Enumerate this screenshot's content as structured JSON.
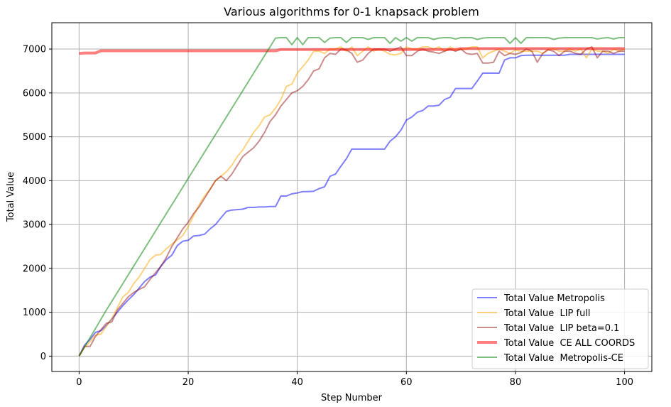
{
  "chart_data": {
    "type": "line",
    "title": "Various algorithms for 0-1 knapsack problem",
    "xlabel": "Step Number",
    "ylabel": "Total  Value",
    "xlim": [
      -5,
      105
    ],
    "ylim": [
      -350,
      7600
    ],
    "xticks": [
      0,
      20,
      40,
      60,
      80,
      100
    ],
    "yticks": [
      0,
      1000,
      2000,
      3000,
      4000,
      5000,
      6000,
      7000
    ],
    "grid": true,
    "legend_position": "bottom-right",
    "series": [
      {
        "name": "Total Value Metropolis",
        "color": "#0000ff",
        "opacity": 0.5,
        "width": 2,
        "x": [
          0,
          1,
          2,
          3,
          4,
          5,
          6,
          7,
          8,
          9,
          10,
          11,
          12,
          13,
          14,
          15,
          16,
          17,
          18,
          19,
          20,
          21,
          22,
          23,
          24,
          25,
          26,
          27,
          28,
          29,
          30,
          31,
          32,
          33,
          34,
          35,
          36,
          37,
          38,
          39,
          40,
          41,
          42,
          43,
          44,
          45,
          46,
          47,
          48,
          49,
          50,
          51,
          52,
          53,
          54,
          55,
          56,
          57,
          58,
          59,
          60,
          61,
          62,
          63,
          64,
          65,
          66,
          67,
          68,
          69,
          70,
          71,
          72,
          73,
          74,
          75,
          76,
          77,
          78,
          79,
          80,
          81,
          82,
          83,
          84,
          85,
          86,
          87,
          88,
          89,
          90,
          91,
          92,
          93,
          94,
          95,
          96,
          97,
          98,
          99,
          100
        ],
        "y": [
          0,
          250,
          380,
          540,
          580,
          700,
          850,
          1000,
          1150,
          1280,
          1400,
          1550,
          1700,
          1800,
          1850,
          2050,
          2200,
          2300,
          2520,
          2620,
          2640,
          2740,
          2750,
          2780,
          2900,
          3000,
          3150,
          3300,
          3330,
          3340,
          3350,
          3390,
          3390,
          3400,
          3400,
          3410,
          3410,
          3650,
          3650,
          3700,
          3720,
          3750,
          3750,
          3760,
          3820,
          3860,
          4100,
          4150,
          4330,
          4500,
          4720,
          4720,
          4720,
          4720,
          4720,
          4720,
          4720,
          4900,
          5000,
          5150,
          5380,
          5450,
          5560,
          5600,
          5700,
          5700,
          5720,
          5850,
          5900,
          6100,
          6100,
          6100,
          6100,
          6270,
          6450,
          6450,
          6450,
          6450,
          6750,
          6800,
          6800,
          6850,
          6860,
          6860,
          6860,
          6860,
          6860,
          6860,
          6860,
          6860,
          6880,
          6880,
          6880,
          6880,
          6880,
          6880,
          6880,
          6880,
          6880,
          6880,
          6880
        ]
      },
      {
        "name": "Total Value  LIP full",
        "color": "#ffa500",
        "opacity": 0.5,
        "width": 2,
        "x": [
          0,
          1,
          2,
          3,
          4,
          5,
          6,
          7,
          8,
          9,
          10,
          11,
          12,
          13,
          14,
          15,
          16,
          17,
          18,
          19,
          20,
          21,
          22,
          23,
          24,
          25,
          26,
          27,
          28,
          29,
          30,
          31,
          32,
          33,
          34,
          35,
          36,
          37,
          38,
          39,
          40,
          41,
          42,
          43,
          44,
          45,
          46,
          47,
          48,
          49,
          50,
          51,
          52,
          53,
          54,
          55,
          56,
          57,
          58,
          59,
          60,
          61,
          62,
          63,
          64,
          65,
          66,
          67,
          68,
          69,
          70,
          71,
          72,
          73,
          74,
          75,
          76,
          77,
          78,
          79,
          80,
          81,
          82,
          83,
          84,
          85,
          86,
          87,
          88,
          89,
          90,
          91,
          92,
          93,
          94,
          95,
          96,
          97,
          98,
          99,
          100
        ],
        "y": [
          0,
          200,
          330,
          480,
          500,
          680,
          860,
          1100,
          1350,
          1450,
          1650,
          1800,
          2000,
          2200,
          2300,
          2320,
          2450,
          2550,
          2650,
          2750,
          2950,
          3200,
          3450,
          3650,
          3800,
          4000,
          4100,
          4200,
          4350,
          4550,
          4700,
          4900,
          5100,
          5250,
          5450,
          5500,
          5650,
          5850,
          6150,
          6200,
          6450,
          6600,
          6750,
          6950,
          6950,
          6900,
          7000,
          7000,
          7050,
          6950,
          7050,
          6850,
          6950,
          7050,
          6950,
          7000,
          6950,
          6880,
          6870,
          6900,
          7050,
          7000,
          7000,
          7050,
          7050,
          7000,
          7050,
          6950,
          7050,
          6980,
          7000,
          7000,
          7050,
          7050,
          6800,
          6900,
          6950,
          7000,
          6950,
          6900,
          6980,
          6950,
          6950,
          6950,
          6950,
          6900,
          7000,
          7000,
          6950,
          6950,
          7000,
          6950,
          7000,
          6800,
          7000,
          6950,
          6950,
          6900,
          7000,
          6950,
          7000
        ]
      },
      {
        "name": "Total Value  LIP beta=0.1",
        "color": "#8b0000",
        "opacity": 0.45,
        "width": 2,
        "x": [
          0,
          1,
          2,
          3,
          4,
          5,
          6,
          7,
          8,
          9,
          10,
          11,
          12,
          13,
          14,
          15,
          16,
          17,
          18,
          19,
          20,
          21,
          22,
          23,
          24,
          25,
          26,
          27,
          28,
          29,
          30,
          31,
          32,
          33,
          34,
          35,
          36,
          37,
          38,
          39,
          40,
          41,
          42,
          43,
          44,
          45,
          46,
          47,
          48,
          49,
          50,
          51,
          52,
          53,
          54,
          55,
          56,
          57,
          58,
          59,
          60,
          61,
          62,
          63,
          64,
          65,
          66,
          67,
          68,
          69,
          70,
          71,
          72,
          73,
          74,
          75,
          76,
          77,
          78,
          79,
          80,
          81,
          82,
          83,
          84,
          85,
          86,
          87,
          88,
          89,
          90,
          91,
          92,
          93,
          94,
          95,
          96,
          97,
          98,
          99,
          100
        ],
        "y": [
          0,
          220,
          220,
          450,
          600,
          750,
          780,
          1050,
          1200,
          1350,
          1450,
          1520,
          1580,
          1750,
          1900,
          2050,
          2250,
          2500,
          2700,
          2900,
          3050,
          3250,
          3400,
          3600,
          3800,
          4000,
          4100,
          4000,
          4150,
          4350,
          4550,
          4650,
          4750,
          4900,
          5100,
          5350,
          5500,
          5700,
          5850,
          6000,
          6050,
          6150,
          6300,
          6500,
          6550,
          6800,
          6900,
          6880,
          7000,
          6980,
          6900,
          6700,
          6750,
          6900,
          7000,
          7000,
          7000,
          6950,
          7000,
          7050,
          6850,
          6850,
          6950,
          7000,
          6950,
          6930,
          6900,
          6950,
          7000,
          6950,
          7000,
          6900,
          6880,
          6900,
          6680,
          6680,
          6700,
          6950,
          6850,
          6900,
          6880,
          6920,
          7000,
          6950,
          6700,
          6900,
          6980,
          6950,
          6850,
          6950,
          6950,
          6900,
          6880,
          7000,
          7050,
          6800,
          6950,
          6950,
          6900,
          6950,
          6950
        ]
      },
      {
        "name": "Total Value  CE ALL COORDS",
        "color": "#ff0000",
        "opacity": 0.5,
        "width": 4,
        "x": [
          0,
          1,
          2,
          3,
          4,
          5,
          6,
          7,
          8,
          9,
          10,
          11,
          12,
          13,
          14,
          15,
          16,
          17,
          18,
          19,
          20,
          21,
          22,
          23,
          24,
          25,
          26,
          27,
          28,
          29,
          30,
          31,
          32,
          33,
          34,
          35,
          36,
          37,
          38,
          39,
          40,
          41,
          42,
          43,
          44,
          45,
          46,
          47,
          48,
          49,
          50,
          51,
          52,
          53,
          54,
          55,
          56,
          57,
          58,
          59,
          60,
          61,
          62,
          63,
          64,
          65,
          66,
          67,
          68,
          69,
          70,
          71,
          72,
          73,
          74,
          75,
          76,
          77,
          78,
          79,
          80,
          81,
          82,
          83,
          84,
          85,
          86,
          87,
          88,
          89,
          90,
          91,
          92,
          93,
          94,
          95,
          96,
          97,
          98,
          99,
          100
        ],
        "y": [
          6900,
          6910,
          6910,
          6910,
          6960,
          6960,
          6960,
          6960,
          6960,
          6960,
          6960,
          6960,
          6960,
          6960,
          6960,
          6960,
          6960,
          6960,
          6960,
          6960,
          6960,
          6960,
          6960,
          6960,
          6960,
          6960,
          6960,
          6960,
          6960,
          6960,
          6960,
          6960,
          6960,
          6960,
          6960,
          6960,
          6960,
          6990,
          6990,
          6990,
          6990,
          6990,
          6990,
          6990,
          6990,
          6990,
          6990,
          6990,
          6990,
          6990,
          6990,
          6990,
          6990,
          6990,
          6990,
          6990,
          6990,
          6990,
          6990,
          6990,
          6990,
          6990,
          6990,
          6990,
          6990,
          6990,
          6990,
          6990,
          6990,
          6990,
          7010,
          7010,
          7010,
          7010,
          7010,
          7010,
          7010,
          7010,
          7010,
          7010,
          7010,
          7010,
          7010,
          7010,
          7010,
          7010,
          7010,
          7010,
          7010,
          7010,
          7010,
          7010,
          7010,
          7010,
          7010,
          7010,
          7010,
          7010,
          7010,
          7010,
          7010
        ]
      },
      {
        "name": "Total Value  Metropolis-CE",
        "color": "#008000",
        "opacity": 0.5,
        "width": 2,
        "x": [
          0,
          1,
          2,
          3,
          4,
          5,
          6,
          7,
          8,
          9,
          10,
          11,
          12,
          13,
          14,
          15,
          16,
          17,
          18,
          19,
          20,
          21,
          22,
          23,
          24,
          25,
          26,
          27,
          28,
          29,
          30,
          31,
          32,
          33,
          34,
          35,
          36,
          37,
          38,
          39,
          40,
          41,
          42,
          43,
          44,
          45,
          46,
          47,
          48,
          49,
          50,
          51,
          52,
          53,
          54,
          55,
          56,
          57,
          58,
          59,
          60,
          61,
          62,
          63,
          64,
          65,
          66,
          67,
          68,
          69,
          70,
          71,
          72,
          73,
          74,
          75,
          76,
          77,
          78,
          79,
          80,
          81,
          82,
          83,
          84,
          85,
          86,
          87,
          88,
          89,
          90,
          91,
          92,
          93,
          94,
          95,
          96,
          97,
          98,
          99,
          100
        ],
        "y": [
          0,
          210,
          420,
          630,
          840,
          1050,
          1250,
          1450,
          1650,
          1850,
          2050,
          2250,
          2450,
          2650,
          2850,
          3050,
          3250,
          3450,
          3650,
          3850,
          4050,
          4250,
          4450,
          4650,
          4850,
          5050,
          5250,
          5450,
          5650,
          5850,
          6050,
          6250,
          6450,
          6650,
          6850,
          7050,
          7250,
          7260,
          7260,
          7100,
          7260,
          7100,
          7260,
          7260,
          7260,
          7150,
          7250,
          7260,
          7260,
          7150,
          7260,
          7260,
          7260,
          7220,
          7260,
          7260,
          7260,
          7130,
          7260,
          7180,
          7260,
          7180,
          7260,
          7260,
          7260,
          7220,
          7250,
          7260,
          7260,
          7230,
          7260,
          7260,
          7260,
          7220,
          7250,
          7260,
          7260,
          7260,
          7260,
          7130,
          7260,
          7130,
          7260,
          7260,
          7260,
          7260,
          7260,
          7220,
          7250,
          7260,
          7260,
          7260,
          7260,
          7260,
          7260,
          7230,
          7250,
          7260,
          7230,
          7260,
          7260
        ]
      }
    ]
  }
}
